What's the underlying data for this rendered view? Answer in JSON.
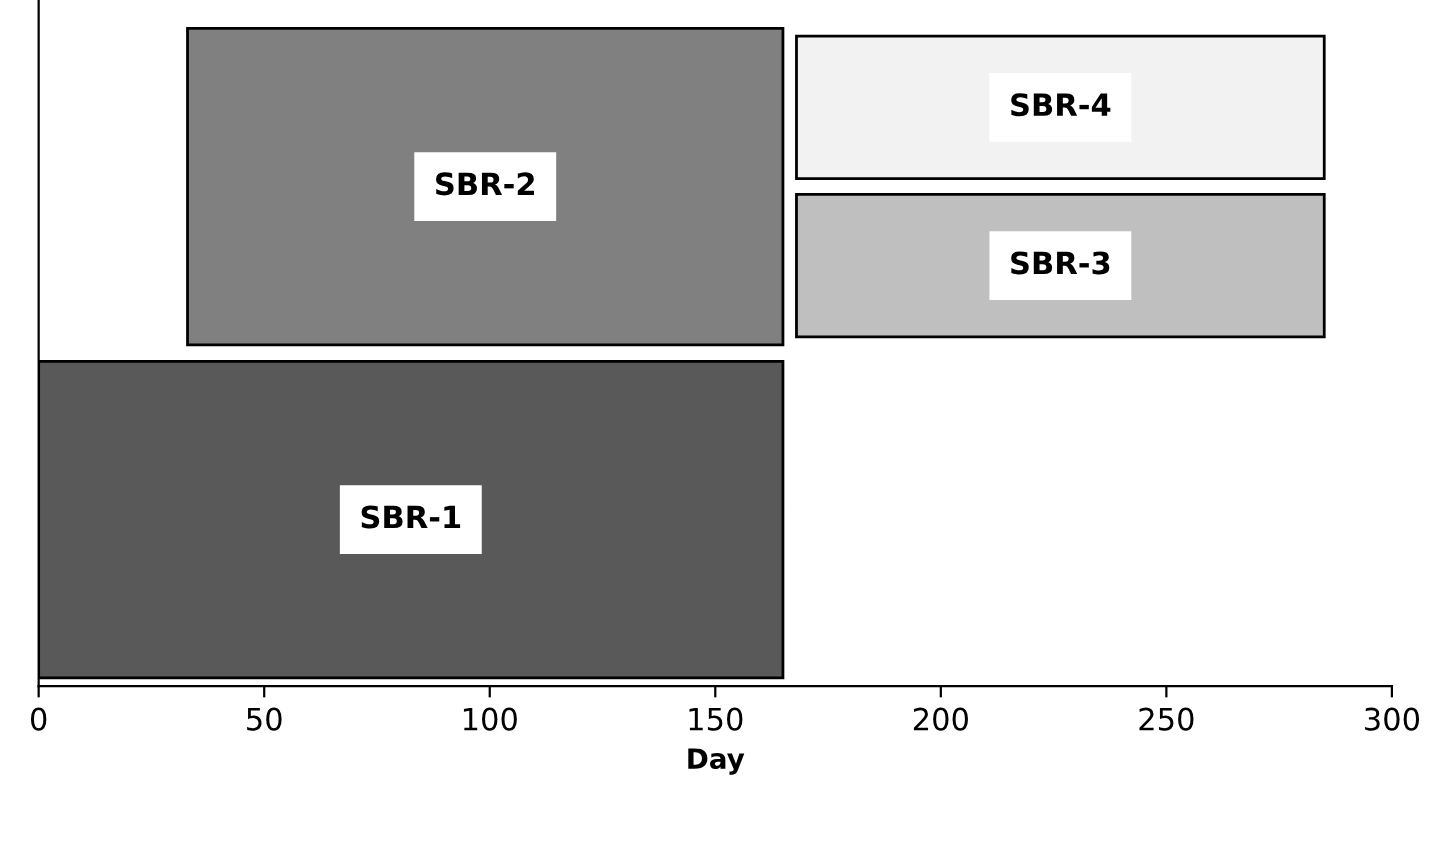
{
  "chart_data": {
    "type": "bar",
    "orientation": "horizontal",
    "xlabel": "Day",
    "categories": [
      null,
      null
    ],
    "xlim": [
      0,
      300
    ],
    "xticks": [
      0,
      50,
      100,
      150,
      200,
      250,
      300
    ],
    "grid": false,
    "legend": false,
    "series": [
      {
        "name": "SBR-2",
        "color": "#808080",
        "values": [
          132,
          null
        ],
        "base": [
          33,
          null
        ]
      },
      {
        "name": "SBR-4",
        "color": "#f2f2f2",
        "values": [
          117,
          null
        ],
        "base": [
          168,
          null
        ]
      },
      {
        "name": "SBR-3",
        "color": "#bfbfbf",
        "values": [
          117,
          null
        ],
        "base": [
          168,
          null
        ]
      },
      {
        "name": "SBR-1",
        "color": "#595959",
        "values": [
          null,
          165
        ],
        "base": [
          null,
          0
        ]
      }
    ]
  }
}
